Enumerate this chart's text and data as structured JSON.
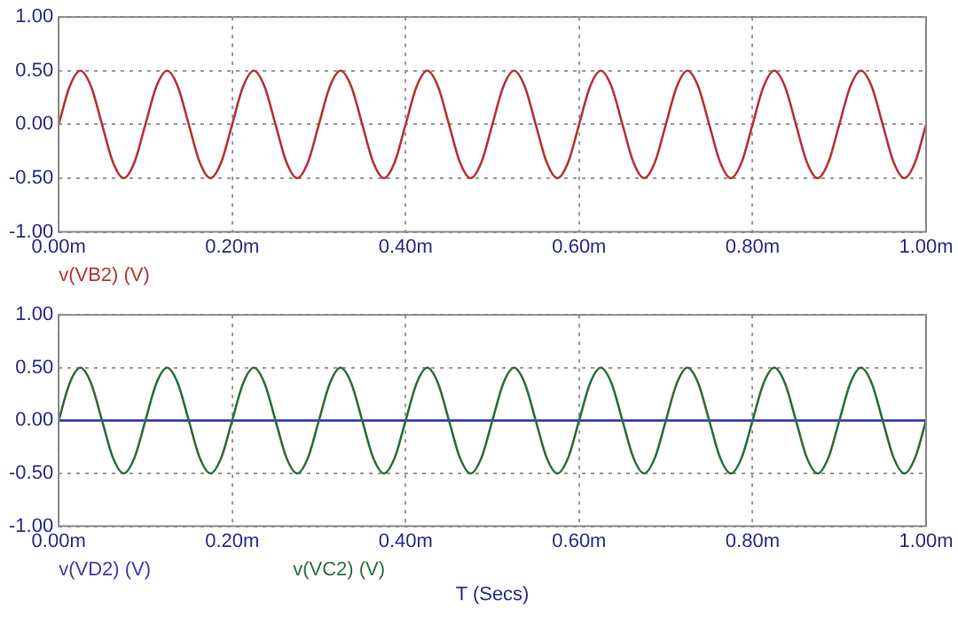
{
  "chart_data": [
    {
      "type": "line",
      "legend": "bottom",
      "grid": true,
      "line_style": "solid",
      "marker": "none",
      "xlim": [
        0,
        1
      ],
      "ylim": [
        -1,
        1
      ],
      "xticks": [
        {
          "value": 0,
          "label": "0.00m"
        },
        {
          "value": 0.2,
          "label": "0.20m"
        },
        {
          "value": 0.4,
          "label": "0.40m"
        },
        {
          "value": 0.6,
          "label": "0.60m"
        },
        {
          "value": 0.8,
          "label": "0.80m"
        },
        {
          "value": 1,
          "label": "1.00m"
        }
      ],
      "yticks": [
        {
          "value": -1,
          "label": "-1.00"
        },
        {
          "value": -0.5,
          "label": "-0.50"
        },
        {
          "value": 0,
          "label": "0.00"
        },
        {
          "value": 0.5,
          "label": "0.50"
        },
        {
          "value": 1,
          "label": "1.00"
        }
      ],
      "x": [
        0,
        0.0125,
        0.025,
        0.0375,
        0.05,
        0.0625,
        0.075,
        0.0875,
        0.1,
        0.1125,
        0.125,
        0.1375,
        0.15,
        0.1625,
        0.175,
        0.1875,
        0.2,
        0.2125,
        0.225,
        0.2375,
        0.25,
        0.2625,
        0.275,
        0.2875,
        0.3,
        0.3125,
        0.325,
        0.3375,
        0.35,
        0.3625,
        0.375,
        0.3875,
        0.4,
        0.4125,
        0.425,
        0.4375,
        0.45,
        0.4625,
        0.475,
        0.4875,
        0.5,
        0.5125,
        0.525,
        0.5375,
        0.55,
        0.5625,
        0.575,
        0.5875,
        0.6,
        0.6125,
        0.625,
        0.6375,
        0.65,
        0.6625,
        0.675,
        0.6875,
        0.7,
        0.7125,
        0.725,
        0.7375,
        0.75,
        0.7625,
        0.775,
        0.7875,
        0.8,
        0.8125,
        0.825,
        0.8375,
        0.85,
        0.8625,
        0.875,
        0.8875,
        0.9,
        0.9125,
        0.925,
        0.9375,
        0.95,
        0.9625,
        0.975,
        0.9875,
        1
      ],
      "series": [
        {
          "name": "v(VB2) (V)",
          "color": "#b8333a",
          "values": [
            0,
            0.35,
            0.5,
            0.35,
            0,
            -0.35,
            -0.5,
            -0.35,
            0,
            0.35,
            0.5,
            0.35,
            0,
            -0.35,
            -0.5,
            -0.35,
            0,
            0.35,
            0.5,
            0.35,
            0,
            -0.35,
            -0.5,
            -0.35,
            0,
            0.35,
            0.5,
            0.35,
            0,
            -0.35,
            -0.5,
            -0.35,
            0,
            0.35,
            0.5,
            0.35,
            0,
            -0.35,
            -0.5,
            -0.35,
            0,
            0.35,
            0.5,
            0.35,
            0,
            -0.35,
            -0.5,
            -0.35,
            0,
            0.35,
            0.5,
            0.35,
            0,
            -0.35,
            -0.5,
            -0.35,
            0,
            0.35,
            0.5,
            0.35,
            0,
            -0.35,
            -0.5,
            -0.35,
            0,
            0.35,
            0.5,
            0.35,
            0,
            -0.35,
            -0.5,
            -0.35,
            0,
            0.35,
            0.5,
            0.35,
            0,
            -0.35,
            -0.5,
            -0.35,
            0
          ]
        }
      ]
    },
    {
      "type": "line",
      "legend": "bottom",
      "grid": true,
      "line_style": "solid",
      "marker": "none",
      "xlabel": "T (Secs)",
      "xlim": [
        0,
        1
      ],
      "ylim": [
        -1,
        1
      ],
      "xticks": [
        {
          "value": 0,
          "label": "0.00m"
        },
        {
          "value": 0.2,
          "label": "0.20m"
        },
        {
          "value": 0.4,
          "label": "0.40m"
        },
        {
          "value": 0.6,
          "label": "0.60m"
        },
        {
          "value": 0.8,
          "label": "0.80m"
        },
        {
          "value": 1,
          "label": "1.00m"
        }
      ],
      "yticks": [
        {
          "value": -1,
          "label": "-1.00"
        },
        {
          "value": -0.5,
          "label": "-0.50"
        },
        {
          "value": 0,
          "label": "0.00"
        },
        {
          "value": 0.5,
          "label": "0.50"
        },
        {
          "value": 1,
          "label": "1.00"
        }
      ],
      "x": [
        0,
        0.0125,
        0.025,
        0.0375,
        0.05,
        0.0625,
        0.075,
        0.0875,
        0.1,
        0.1125,
        0.125,
        0.1375,
        0.15,
        0.1625,
        0.175,
        0.1875,
        0.2,
        0.2125,
        0.225,
        0.2375,
        0.25,
        0.2625,
        0.275,
        0.2875,
        0.3,
        0.3125,
        0.325,
        0.3375,
        0.35,
        0.3625,
        0.375,
        0.3875,
        0.4,
        0.4125,
        0.425,
        0.4375,
        0.45,
        0.4625,
        0.475,
        0.4875,
        0.5,
        0.5125,
        0.525,
        0.5375,
        0.55,
        0.5625,
        0.575,
        0.5875,
        0.6,
        0.6125,
        0.625,
        0.6375,
        0.65,
        0.6625,
        0.675,
        0.6875,
        0.7,
        0.7125,
        0.725,
        0.7375,
        0.75,
        0.7625,
        0.775,
        0.7875,
        0.8,
        0.8125,
        0.825,
        0.8375,
        0.85,
        0.8625,
        0.875,
        0.8875,
        0.9,
        0.9125,
        0.925,
        0.9375,
        0.95,
        0.9625,
        0.975,
        0.9875,
        1
      ],
      "series": [
        {
          "name": "v(VD2) (V)",
          "color": "#3b3bb0",
          "x": [
            0,
            1
          ],
          "values": [
            0,
            0
          ]
        },
        {
          "name": "v(VC2) (V)",
          "color": "#2f6e3c",
          "values": [
            0,
            0.35,
            0.5,
            0.35,
            0,
            -0.35,
            -0.5,
            -0.35,
            0,
            0.35,
            0.5,
            0.35,
            0,
            -0.35,
            -0.5,
            -0.35,
            0,
            0.35,
            0.5,
            0.35,
            0,
            -0.35,
            -0.5,
            -0.35,
            0,
            0.35,
            0.5,
            0.35,
            0,
            -0.35,
            -0.5,
            -0.35,
            0,
            0.35,
            0.5,
            0.35,
            0,
            -0.35,
            -0.5,
            -0.35,
            0,
            0.35,
            0.5,
            0.35,
            0,
            -0.35,
            -0.5,
            -0.35,
            0,
            0.35,
            0.5,
            0.35,
            0,
            -0.35,
            -0.5,
            -0.35,
            0,
            0.35,
            0.5,
            0.35,
            0,
            -0.35,
            -0.5,
            -0.35,
            0,
            0.35,
            0.5,
            0.35,
            0,
            -0.35,
            -0.5,
            -0.35,
            0,
            0.35,
            0.5,
            0.35,
            0,
            -0.35,
            -0.5,
            -0.35,
            0
          ]
        }
      ]
    }
  ]
}
